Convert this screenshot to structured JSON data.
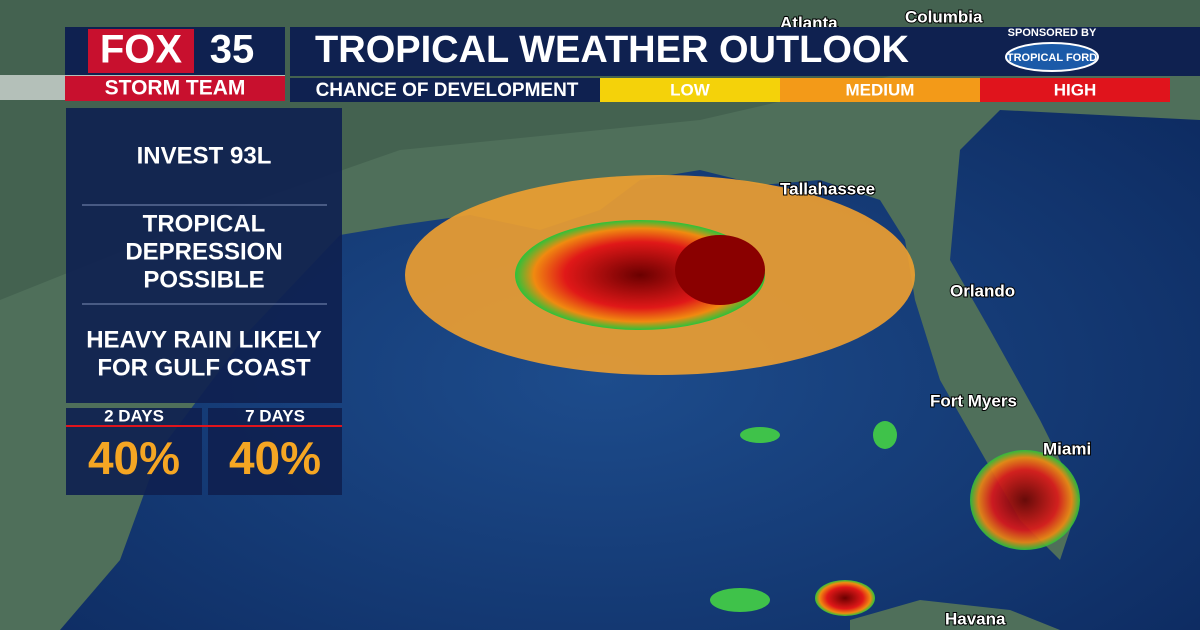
{
  "header": {
    "logo": {
      "network": "FOX",
      "channel": "35",
      "team": "STORM TEAM"
    },
    "title": "TROPICAL WEATHER OUTLOOK",
    "sponsor": {
      "label": "SPONSORED BY",
      "name": "TROPICAL FORD"
    }
  },
  "legend": {
    "title": "CHANCE OF DEVELOPMENT",
    "levels": [
      "LOW",
      "MEDIUM",
      "HIGH"
    ]
  },
  "panel": {
    "storm": "INVEST 93L",
    "outlook": [
      "TROPICAL",
      "DEPRESSION",
      "POSSIBLE"
    ],
    "impact": [
      "HEAVY RAIN LIKELY",
      "FOR GULF COAST"
    ],
    "odds": [
      {
        "period": "2 DAYS",
        "chance": "40%"
      },
      {
        "period": "7 DAYS",
        "chance": "40%"
      }
    ]
  },
  "map": {
    "cities": [
      "Atlanta",
      "Columbia",
      "Tallahassee",
      "Orlando",
      "Fort Myers",
      "Miami",
      "Havana"
    ]
  }
}
